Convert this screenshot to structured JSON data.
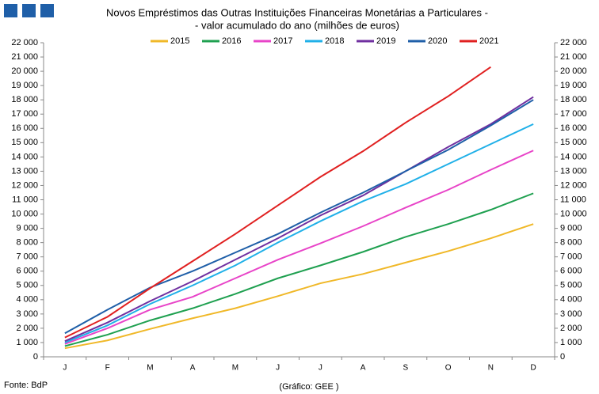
{
  "chart_data": {
    "type": "line",
    "title": "Novos Empréstimos das Outras Instituições Financeiras Monetárias a Particulares -",
    "subtitle": "- valor acumulado  do ano (milhões de euros)",
    "source": "Fonte: BdP",
    "credit": "(Gráfico: GEE )",
    "categories": [
      "J",
      "F",
      "M",
      "A",
      "M",
      "J",
      "J",
      "A",
      "S",
      "O",
      "N",
      "D"
    ],
    "series": [
      {
        "name": "2015",
        "color": "#f0b828",
        "values": [
          600,
          1150,
          1950,
          2700,
          3400,
          4250,
          5150,
          5800,
          6600,
          7400,
          8300,
          9300
        ]
      },
      {
        "name": "2016",
        "color": "#1fa050",
        "values": [
          750,
          1550,
          2550,
          3400,
          4400,
          5500,
          6400,
          7350,
          8400,
          9300,
          10300,
          11450
        ]
      },
      {
        "name": "2017",
        "color": "#e844c8",
        "values": [
          900,
          2000,
          3300,
          4200,
          5500,
          6800,
          7950,
          9150,
          10450,
          11700,
          13100,
          14450
        ]
      },
      {
        "name": "2018",
        "color": "#20b0e8",
        "values": [
          1000,
          2200,
          3700,
          5000,
          6400,
          8000,
          9500,
          10900,
          12100,
          13500,
          14900,
          16300
        ]
      },
      {
        "name": "2019",
        "color": "#7030a0",
        "values": [
          1100,
          2400,
          3900,
          5300,
          6800,
          8300,
          9900,
          11300,
          13000,
          14700,
          16300,
          18200
        ]
      },
      {
        "name": "2020",
        "color": "#1f5fa8",
        "values": [
          1650,
          3300,
          4850,
          6000,
          7300,
          8600,
          10100,
          11500,
          13000,
          14500,
          16200,
          18000
        ]
      },
      {
        "name": "2021",
        "color": "#e02020",
        "values": [
          1350,
          2800,
          4800,
          6700,
          8600,
          10600,
          12600,
          14400,
          16400,
          18250,
          20300,
          null
        ]
      }
    ],
    "ylim": [
      0,
      22000
    ],
    "yticks": [
      0,
      {
        "value": 1000,
        "label": "1 000"
      },
      {
        "value": 2000,
        "label": "2 000"
      },
      {
        "value": 3000,
        "label": "3 000"
      },
      {
        "value": 4000,
        "label": "4 000"
      },
      {
        "value": 5000,
        "label": "5 000"
      },
      {
        "value": 6000,
        "label": "6 000"
      },
      {
        "value": 7000,
        "label": "7 000"
      },
      {
        "value": 8000,
        "label": "8 000"
      },
      {
        "value": 9000,
        "label": "9 000"
      },
      {
        "value": 10000,
        "label": "10 000"
      },
      {
        "value": 11000,
        "label": "11 000"
      },
      {
        "value": 12000,
        "label": "12 000"
      },
      {
        "value": 13000,
        "label": "13 000"
      },
      {
        "value": 14000,
        "label": "14 000"
      },
      {
        "value": 15000,
        "label": "15 000"
      },
      {
        "value": 16000,
        "label": "16 000"
      },
      {
        "value": 17000,
        "label": "17 000"
      },
      {
        "value": 18000,
        "label": "18 000"
      },
      {
        "value": 19000,
        "label": "19 000"
      },
      {
        "value": 20000,
        "label": "20 000"
      },
      {
        "value": 21000,
        "label": "21 000"
      },
      {
        "value": 22000,
        "label": "22 000"
      }
    ],
    "grid": false,
    "legend": "top"
  }
}
